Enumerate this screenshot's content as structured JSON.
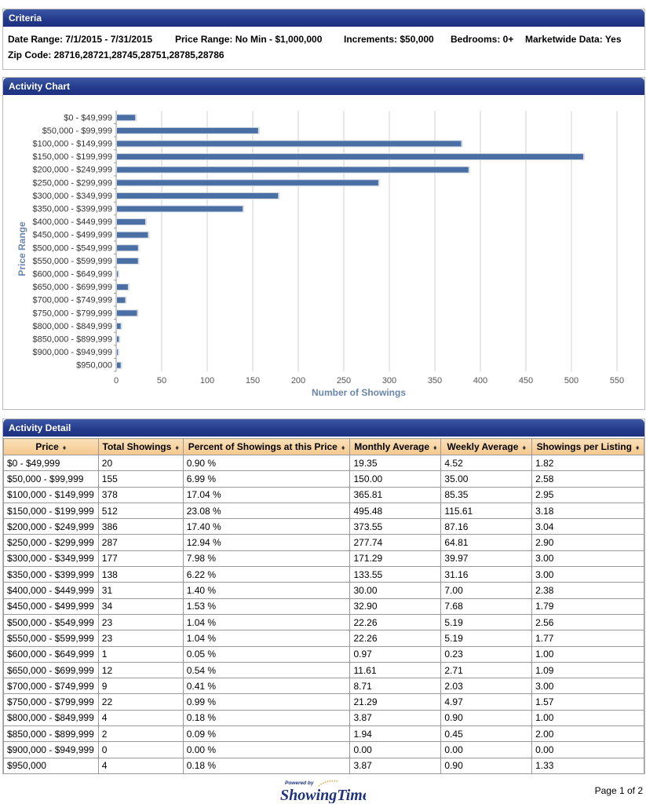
{
  "criteria": {
    "title": "Criteria",
    "date_range": "Date Range: 7/1/2015 - 7/31/2015",
    "price_range": "Price Range: No Min - $1,000,000",
    "increments": "Increments: $50,000",
    "bedrooms": "Bedrooms: 0+",
    "marketwide": "Marketwide Data: Yes",
    "zip_code": "Zip Code:  28716,28721,28745,28751,28785,28786"
  },
  "activity_chart": {
    "title": "Activity Chart"
  },
  "chart_data": {
    "type": "bar",
    "orientation": "horizontal",
    "categories": [
      "$0 - $49,999",
      "$50,000 - $99,999",
      "$100,000 - $149,999",
      "$150,000 - $199,999",
      "$200,000 - $249,999",
      "$250,000 - $299,999",
      "$300,000 - $349,999",
      "$350,000 - $399,999",
      "$400,000 - $449,999",
      "$450,000 - $499,999",
      "$500,000 - $549,999",
      "$550,000 - $599,999",
      "$600,000 - $649,999",
      "$650,000 - $699,999",
      "$700,000 - $749,999",
      "$750,000 - $799,999",
      "$800,000 - $849,999",
      "$850,000 - $899,999",
      "$900,000 - $949,999",
      "$950,000"
    ],
    "values": [
      20,
      155,
      378,
      512,
      386,
      287,
      177,
      138,
      31,
      34,
      23,
      23,
      1,
      12,
      9,
      22,
      4,
      2,
      0,
      4
    ],
    "xlabel": "Number of Showings",
    "ylabel": "Price Range",
    "xlim": [
      0,
      550
    ],
    "xticks": [
      0,
      50,
      100,
      150,
      200,
      250,
      300,
      350,
      400,
      450,
      500,
      550
    ],
    "grid": true,
    "bar_color": "#4a6fa5"
  },
  "activity_detail": {
    "title": "Activity Detail",
    "columns": [
      "Price",
      "Total Showings",
      "Percent of Showings at this Price",
      "Monthly Average",
      "Weekly Average",
      "Showings per Listing"
    ],
    "rows": [
      [
        "$0 - $49,999",
        "20",
        "0.90 %",
        "19.35",
        "4.52",
        "1.82"
      ],
      [
        "$50,000 - $99,999",
        "155",
        "6.99 %",
        "150.00",
        "35.00",
        "2.58"
      ],
      [
        "$100,000 - $149,999",
        "378",
        "17.04 %",
        "365.81",
        "85.35",
        "2.95"
      ],
      [
        "$150,000 - $199,999",
        "512",
        "23.08 %",
        "495.48",
        "115.61",
        "3.18"
      ],
      [
        "$200,000 - $249,999",
        "386",
        "17.40 %",
        "373.55",
        "87.16",
        "3.04"
      ],
      [
        "$250,000 - $299,999",
        "287",
        "12.94 %",
        "277.74",
        "64.81",
        "2.90"
      ],
      [
        "$300,000 - $349,999",
        "177",
        "7.98 %",
        "171.29",
        "39.97",
        "3.00"
      ],
      [
        "$350,000 - $399,999",
        "138",
        "6.22 %",
        "133.55",
        "31.16",
        "3.00"
      ],
      [
        "$400,000 - $449,999",
        "31",
        "1.40 %",
        "30.00",
        "7.00",
        "2.38"
      ],
      [
        "$450,000 - $499,999",
        "34",
        "1.53 %",
        "32.90",
        "7.68",
        "1.79"
      ],
      [
        "$500,000 - $549,999",
        "23",
        "1.04 %",
        "22.26",
        "5.19",
        "2.56"
      ],
      [
        "$550,000 - $599,999",
        "23",
        "1.04 %",
        "22.26",
        "5.19",
        "1.77"
      ],
      [
        "$600,000 - $649,999",
        "1",
        "0.05 %",
        "0.97",
        "0.23",
        "1.00"
      ],
      [
        "$650,000 - $699,999",
        "12",
        "0.54 %",
        "11.61",
        "2.71",
        "1.09"
      ],
      [
        "$700,000 - $749,999",
        "9",
        "0.41 %",
        "8.71",
        "2.03",
        "3.00"
      ],
      [
        "$750,000 - $799,999",
        "22",
        "0.99 %",
        "21.29",
        "4.97",
        "1.57"
      ],
      [
        "$800,000 - $849,999",
        "4",
        "0.18 %",
        "3.87",
        "0.90",
        "1.00"
      ],
      [
        "$850,000 - $899,999",
        "2",
        "0.09 %",
        "1.94",
        "0.45",
        "2.00"
      ],
      [
        "$900,000 - $949,999",
        "0",
        "0.00 %",
        "0.00",
        "0.00",
        "0.00"
      ],
      [
        "$950,000",
        "4",
        "0.18 %",
        "3.87",
        "0.90",
        "1.33"
      ]
    ]
  },
  "footer": {
    "powered_by": "Powered by",
    "brand": "ShowingTime",
    "page": "Page 1 of 2"
  }
}
